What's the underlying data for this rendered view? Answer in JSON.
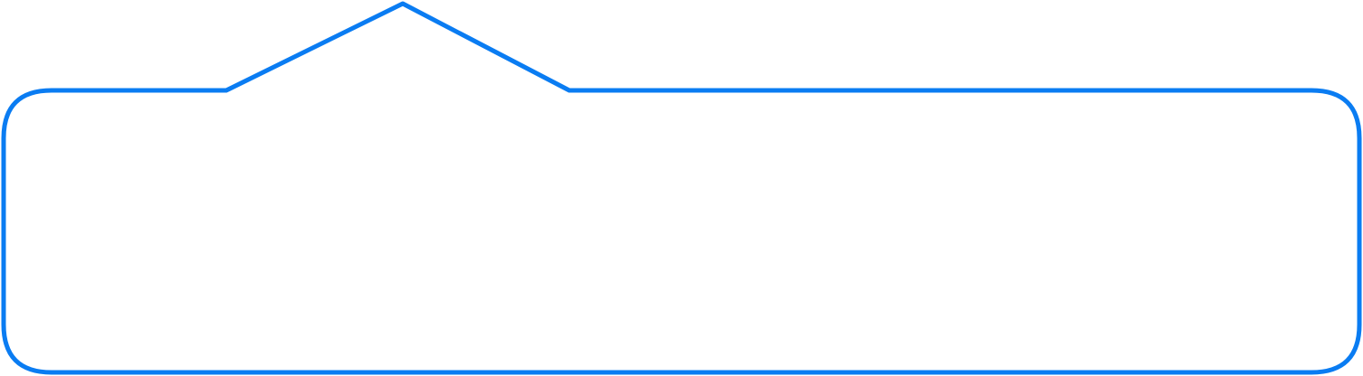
{
  "callout": {
    "stroke_color": "#0a7cf2",
    "fill_color": "#ffffff",
    "pointer_direction": "up",
    "content_text": ""
  }
}
